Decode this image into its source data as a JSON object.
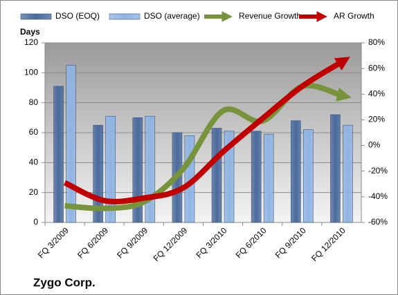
{
  "chart_data": {
    "type": "bar-line",
    "title": "Zygo Corp.",
    "y_label": "Days",
    "categories": [
      "FQ 3/2009",
      "FQ 6/2009",
      "FQ 9/2009",
      "FQ 12/2009",
      "FQ 3/2010",
      "FQ 6/2010",
      "FQ 9/2010",
      "FQ 12/2010"
    ],
    "series": [
      {
        "name": "DSO (EOQ)",
        "color": "#4a6a9c",
        "kind": "bar",
        "values": [
          91,
          65,
          70,
          60,
          63,
          61,
          68,
          72
        ]
      },
      {
        "name": "DSO (average)",
        "color": "#8fb4e3",
        "kind": "bar",
        "values": [
          105,
          71,
          71,
          58,
          61,
          59,
          62,
          65
        ]
      },
      {
        "name": "Revenue Growth",
        "color": "#77933c",
        "kind": "line",
        "axis": "y2",
        "values": [
          -47,
          -49,
          -44,
          -18,
          27,
          19,
          46,
          39
        ]
      },
      {
        "name": "AR Growth",
        "color": "#c00000",
        "kind": "line",
        "axis": "y2",
        "values": [
          -29,
          -43,
          -41,
          -33,
          -5,
          21,
          46,
          65
        ]
      }
    ],
    "ylim": [
      0,
      120
    ],
    "yticks": [
      0,
      20,
      40,
      60,
      80,
      100,
      120
    ],
    "y2lim": [
      -60,
      80
    ],
    "y2ticks": [
      {
        "value": -60,
        "label": "-60%"
      },
      {
        "value": -40,
        "label": "-40%"
      },
      {
        "value": -20,
        "label": "-20%"
      },
      {
        "value": 0,
        "label": "0%"
      },
      {
        "value": 20,
        "label": "20%"
      },
      {
        "value": 40,
        "label": "40%"
      },
      {
        "value": 60,
        "label": "60%"
      },
      {
        "value": 80,
        "label": "80%"
      }
    ],
    "grid": true
  }
}
